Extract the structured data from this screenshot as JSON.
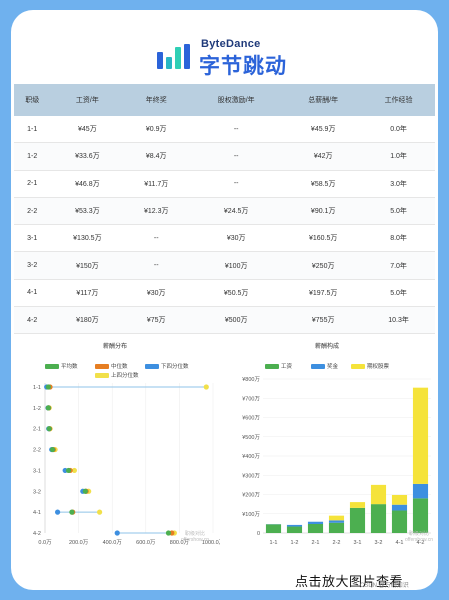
{
  "brand": {
    "en": "ByteDance",
    "cn": "字节跳动",
    "bar_colors": [
      "#2b63d9",
      "#29b6c4",
      "#2fcfb5",
      "#2b63d9"
    ]
  },
  "table": {
    "headers": [
      "职级",
      "工资/年",
      "年终奖",
      "股权激励/年",
      "总薪酬/年",
      "工作经验"
    ],
    "rows": [
      [
        "1-1",
        "¥45万",
        "¥0.9万",
        "--",
        "¥45.9万",
        "0.0年"
      ],
      [
        "1-2",
        "¥33.6万",
        "¥8.4万",
        "--",
        "¥42万",
        "1.0年"
      ],
      [
        "2-1",
        "¥46.8万",
        "¥11.7万",
        "--",
        "¥58.5万",
        "3.0年"
      ],
      [
        "2-2",
        "¥53.3万",
        "¥12.3万",
        "¥24.5万",
        "¥90.1万",
        "5.0年"
      ],
      [
        "3-1",
        "¥130.5万",
        "--",
        "¥30万",
        "¥160.5万",
        "8.0年"
      ],
      [
        "3-2",
        "¥150万",
        "--",
        "¥100万",
        "¥250万",
        "7.0年"
      ],
      [
        "4-1",
        "¥117万",
        "¥30万",
        "¥50.5万",
        "¥197.5万",
        "5.0年"
      ],
      [
        "4-2",
        "¥180万",
        "¥75万",
        "¥500万",
        "¥755万",
        "10.3年"
      ]
    ]
  },
  "chart_data": [
    {
      "type": "scatter",
      "title": "薪酬分布",
      "legend": [
        "平均数",
        "中位数",
        "下四分位数",
        "上四分位数"
      ],
      "colors": {
        "平均数": "#4caf50",
        "中位数": "#e67e22",
        "下四分位数": "#3d8fe0",
        "上四分位数": "#f1e04a"
      },
      "categories": [
        "1-1",
        "1-2",
        "2-1",
        "2-2",
        "3-1",
        "3-2",
        "4-1",
        "4-2"
      ],
      "xlim": [
        0,
        1000
      ],
      "xticks": [
        "0.0万",
        "200.0万",
        "400.0万",
        "600.0万",
        "800.0万",
        "1000.0万"
      ],
      "series": [
        {
          "name": "平均数",
          "values": [
            20,
            20,
            25,
            45,
            140,
            240,
            160,
            735
          ]
        },
        {
          "name": "中位数",
          "values": [
            30,
            22,
            28,
            50,
            150,
            245,
            165,
            755
          ]
        },
        {
          "name": "下四分位数",
          "values": [
            10,
            18,
            22,
            40,
            120,
            225,
            75,
            430
          ]
        },
        {
          "name": "上四分位数",
          "values": [
            960,
            25,
            30,
            60,
            175,
            260,
            325,
            770
          ]
        }
      ],
      "range_line": [
        [
          10,
          960
        ],
        [
          18,
          25
        ],
        [
          22,
          30
        ],
        [
          40,
          60
        ],
        [
          120,
          175
        ],
        [
          225,
          260
        ],
        [
          75,
          325
        ],
        [
          430,
          770
        ]
      ],
      "watermark": [
        "职级对比",
        "offershow.cn"
      ]
    },
    {
      "type": "bar",
      "stacked": true,
      "title": "薪酬构成",
      "legend": [
        "工资",
        "奖金",
        "期权股票"
      ],
      "colors": {
        "工资": "#4caf50",
        "奖金": "#3d8fe0",
        "期权股票": "#f5e33a"
      },
      "categories": [
        "1-1",
        "1-2",
        "2-1",
        "2-2",
        "3-1",
        "3-2",
        "4-1",
        "4-2"
      ],
      "ylim": [
        0,
        800
      ],
      "yticks": [
        "0",
        "¥100万",
        "¥200万",
        "¥300万",
        "¥400万",
        "¥500万",
        "¥600万",
        "¥700万",
        "¥800万"
      ],
      "series": [
        {
          "name": "工资",
          "values": [
            45,
            33.6,
            46.8,
            53.3,
            130.5,
            150,
            117,
            180
          ]
        },
        {
          "name": "奖金",
          "values": [
            0.9,
            8.4,
            11.7,
            12.3,
            0,
            0,
            30,
            75
          ]
        },
        {
          "name": "期权股票",
          "values": [
            0,
            0,
            0,
            24.5,
            30,
            100,
            50.5,
            500
          ]
        }
      ],
      "watermark": [
        "职级对比",
        "offershow.cn"
      ]
    }
  ],
  "cta": "点击放大图片查看",
  "credit": "CSDN @万码知识"
}
